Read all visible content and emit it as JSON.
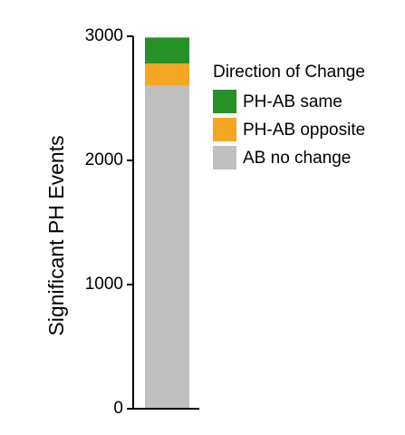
{
  "chart_data": {
    "type": "bar",
    "stacked": true,
    "categories": [
      ""
    ],
    "series": [
      {
        "name": "AB no change",
        "values": [
          2600
        ],
        "color": "#c0c0c0"
      },
      {
        "name": "PH-AB opposite",
        "values": [
          180
        ],
        "color": "#f5a623"
      },
      {
        "name": "PH-AB same",
        "values": [
          210
        ],
        "color": "#279127"
      }
    ],
    "title": "",
    "xlabel": "",
    "ylabel": "Significant PH Events",
    "ylim": [
      0,
      3000
    ],
    "yticks": [
      0,
      1000,
      2000,
      3000
    ],
    "grid": false,
    "legend": {
      "title": "Direction of Change",
      "placement": "right",
      "order": [
        "PH-AB same",
        "PH-AB opposite",
        "AB no change"
      ]
    }
  }
}
